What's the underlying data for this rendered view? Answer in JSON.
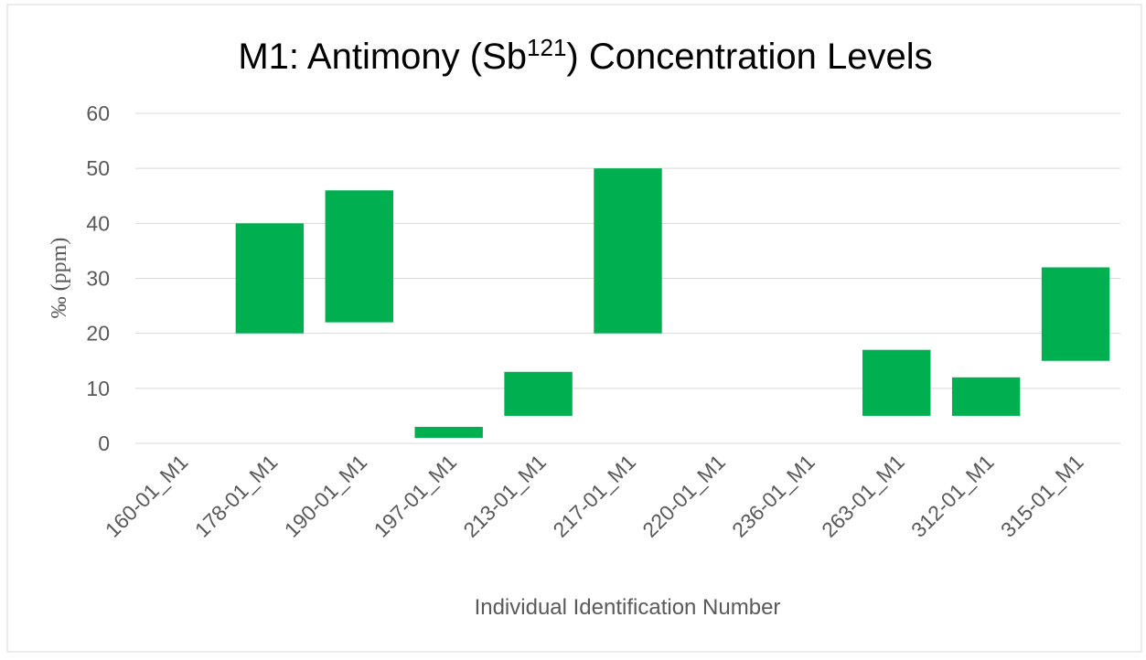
{
  "chart_data": {
    "type": "floating-bar",
    "title": "M1: Antimony (Sb",
    "title_superscript": "121",
    "title_end": ") Concentration Levels",
    "x_label": "Individual Identification Number",
    "y_label": "‰ (ppm)",
    "categories": [
      "160-01_M1",
      "178-01_M1",
      "190-01_M1",
      "197-01_M1",
      "213-01_M1",
      "217-01_M1",
      "220-01_M1",
      "236-01_M1",
      "263-01_M1",
      "312-01_M1",
      "315-01_M1"
    ],
    "low": [
      null,
      20,
      22,
      1,
      5,
      20,
      null,
      null,
      5,
      5,
      15
    ],
    "high": [
      null,
      40,
      46,
      3,
      13,
      50,
      null,
      null,
      17,
      12,
      32
    ],
    "color": "#00b050",
    "ylim": [
      0,
      60
    ],
    "yticks": [
      0,
      10,
      20,
      30,
      40,
      50,
      60
    ],
    "grid": true
  }
}
